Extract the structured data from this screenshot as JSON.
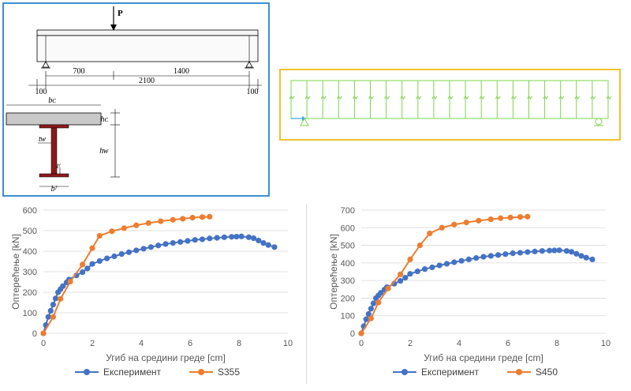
{
  "schematic": {
    "load_label": "P",
    "dim_700": "700",
    "dim_1400": "1400",
    "dim_2100": "2100",
    "dim_100_left": "100",
    "dim_100_right": "100",
    "label_bc": "bᴄ",
    "label_hc": "hᴄ",
    "label_tw": "tᴡ",
    "label_hw": "hᴡ",
    "label_tf": "tᶠ",
    "label_bf": "bᶠ"
  },
  "colors": {
    "blue_frame": "#3d8fd1",
    "yellow_frame": "#f0c030",
    "fem_green": "#7cd64a",
    "series_experiment": "#4472c4",
    "series_model": "#ed7d31",
    "section_red": "#8b1a1a"
  },
  "chart_data": [
    {
      "type": "line",
      "xlabel": "Угиб на средини греде [cm]",
      "ylabel": "Оптерећење [kN]",
      "xlim": [
        0,
        10
      ],
      "ylim": [
        0,
        600
      ],
      "xticks": [
        0,
        2,
        4,
        6,
        8,
        10
      ],
      "yticks": [
        0,
        100,
        200,
        300,
        400,
        500,
        600
      ],
      "series": [
        {
          "name": "Експеримент",
          "color": "#4472c4",
          "x": [
            0,
            0.1,
            0.2,
            0.3,
            0.4,
            0.5,
            0.6,
            0.7,
            0.8,
            0.95,
            1.05,
            1.35,
            1.6,
            1.8,
            2.0,
            2.3,
            2.6,
            2.9,
            3.2,
            3.5,
            3.8,
            4.1,
            4.4,
            4.7,
            5.0,
            5.3,
            5.6,
            5.9,
            6.2,
            6.5,
            6.8,
            7.1,
            7.4,
            7.7,
            7.9,
            8.1,
            8.4,
            8.6,
            8.8,
            9.0,
            9.2,
            9.45
          ],
          "y": [
            0,
            40,
            80,
            110,
            140,
            170,
            200,
            215,
            230,
            248,
            262,
            282,
            298,
            316,
            338,
            352,
            365,
            375,
            386,
            395,
            404,
            412,
            420,
            428,
            435,
            440,
            445,
            450,
            455,
            458,
            462,
            465,
            468,
            470,
            471,
            472,
            468,
            463,
            452,
            440,
            430,
            420
          ]
        },
        {
          "name": "S355",
          "color": "#ed7d31",
          "x": [
            0,
            0.4,
            0.7,
            1.1,
            1.6,
            2.0,
            2.3,
            2.8,
            3.3,
            3.8,
            4.3,
            4.8,
            5.3,
            5.7,
            6.1,
            6.5,
            6.8
          ],
          "y": [
            0,
            80,
            168,
            252,
            335,
            415,
            475,
            497,
            512,
            526,
            537,
            546,
            553,
            558,
            563,
            566,
            568
          ]
        }
      ]
    },
    {
      "type": "line",
      "xlabel": "Угиб на средини греде [cm]",
      "ylabel": "Оптерећење [kN]",
      "xlim": [
        0,
        10
      ],
      "ylim": [
        0,
        700
      ],
      "xticks": [
        0,
        2,
        4,
        6,
        8,
        10
      ],
      "yticks": [
        0,
        100,
        200,
        300,
        400,
        500,
        600,
        700
      ],
      "series": [
        {
          "name": "Експеримент",
          "color": "#4472c4",
          "x": [
            0,
            0.1,
            0.2,
            0.3,
            0.4,
            0.5,
            0.6,
            0.7,
            0.8,
            0.95,
            1.05,
            1.35,
            1.6,
            1.8,
            2.0,
            2.3,
            2.6,
            2.9,
            3.2,
            3.5,
            3.8,
            4.1,
            4.4,
            4.7,
            5.0,
            5.3,
            5.6,
            5.9,
            6.2,
            6.5,
            6.8,
            7.1,
            7.4,
            7.7,
            7.9,
            8.1,
            8.4,
            8.6,
            8.8,
            9.0,
            9.2,
            9.45
          ],
          "y": [
            0,
            40,
            80,
            110,
            140,
            170,
            200,
            215,
            230,
            248,
            262,
            282,
            298,
            316,
            338,
            352,
            365,
            375,
            386,
            395,
            404,
            412,
            420,
            428,
            435,
            440,
            445,
            450,
            455,
            458,
            462,
            465,
            468,
            470,
            471,
            472,
            468,
            463,
            452,
            440,
            430,
            420
          ]
        },
        {
          "name": "S450",
          "color": "#ed7d31",
          "x": [
            0,
            0.4,
            0.7,
            1.1,
            1.6,
            2.0,
            2.4,
            2.8,
            3.3,
            3.8,
            4.3,
            4.8,
            5.3,
            5.7,
            6.1,
            6.5,
            6.8
          ],
          "y": [
            0,
            85,
            175,
            255,
            335,
            420,
            500,
            568,
            600,
            618,
            630,
            640,
            648,
            654,
            658,
            661,
            663
          ]
        }
      ]
    }
  ]
}
